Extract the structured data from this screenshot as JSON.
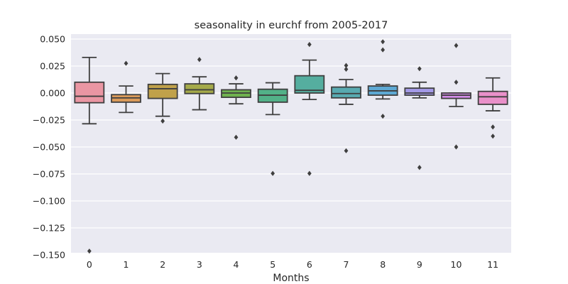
{
  "chart_data": {
    "type": "box",
    "title": "seasonality in eurchf from 2005-2017",
    "xlabel": "Months",
    "ylabel": "",
    "categories": [
      "0",
      "1",
      "2",
      "3",
      "4",
      "5",
      "6",
      "7",
      "8",
      "9",
      "10",
      "11"
    ],
    "ylim": [
      -0.157,
      0.057
    ],
    "yticks": [
      0.05,
      0.025,
      0.0,
      -0.025,
      -0.05,
      -0.075,
      -0.1,
      -0.125,
      -0.15
    ],
    "ytick_labels": [
      "0.050",
      "0.025",
      "0.000",
      "−0.025",
      "−0.050",
      "−0.075",
      "−0.100",
      "−0.125",
      "−0.150"
    ],
    "grid": true,
    "style": "seaborn-darkgrid",
    "boxes": [
      {
        "month": "0",
        "color": "#ea96a3",
        "whisker_low": -0.0285,
        "q1": -0.009,
        "median": -0.003,
        "q3": 0.01,
        "whisker_high": 0.033,
        "outliers": [
          -0.1465
        ]
      },
      {
        "month": "1",
        "color": "#da9a5a",
        "whisker_low": -0.018,
        "q1": -0.0085,
        "median": -0.0045,
        "q3": -0.0015,
        "whisker_high": 0.0065,
        "outliers": [
          0.0275
        ]
      },
      {
        "month": "2",
        "color": "#c0a14a",
        "whisker_low": -0.0215,
        "q1": -0.005,
        "median": 0.004,
        "q3": 0.008,
        "whisker_high": 0.018,
        "outliers": [
          -0.026
        ]
      },
      {
        "month": "3",
        "color": "#a5aa4a",
        "whisker_low": -0.0155,
        "q1": -0.0005,
        "median": 0.003,
        "q3": 0.0085,
        "whisker_high": 0.015,
        "outliers": [
          0.031
        ]
      },
      {
        "month": "4",
        "color": "#6fb24f",
        "whisker_low": -0.01,
        "q1": -0.004,
        "median": 0.0,
        "q3": 0.003,
        "whisker_high": 0.0085,
        "outliers": [
          0.014,
          -0.041
        ]
      },
      {
        "month": "5",
        "color": "#52b188",
        "whisker_low": -0.02,
        "q1": -0.0085,
        "median": -0.002,
        "q3": 0.0035,
        "whisker_high": 0.0095,
        "outliers": [
          -0.0745
        ]
      },
      {
        "month": "6",
        "color": "#55ae9f",
        "whisker_low": -0.006,
        "q1": 0.0,
        "median": 0.0025,
        "q3": 0.016,
        "whisker_high": 0.0305,
        "outliers": [
          0.045,
          -0.0745
        ]
      },
      {
        "month": "7",
        "color": "#58aab0",
        "whisker_low": -0.0105,
        "q1": -0.0045,
        "median": -0.0005,
        "q3": 0.0055,
        "whisker_high": 0.0125,
        "outliers": [
          0.0255,
          0.022,
          -0.0535
        ]
      },
      {
        "month": "8",
        "color": "#5ea9d4",
        "whisker_low": -0.0055,
        "q1": -0.002,
        "median": 0.002,
        "q3": 0.0065,
        "whisker_high": 0.008,
        "outliers": [
          0.0475,
          0.04,
          -0.0215
        ]
      },
      {
        "month": "9",
        "color": "#a49ae8",
        "whisker_low": -0.0045,
        "q1": -0.002,
        "median": 0.0,
        "q3": 0.0045,
        "whisker_high": 0.01,
        "outliers": [
          0.0225,
          -0.069
        ]
      },
      {
        "month": "10",
        "color": "#d28de8",
        "whisker_low": -0.0125,
        "q1": -0.005,
        "median": -0.002,
        "q3": 0.0,
        "whisker_high": 0.0,
        "outliers": [
          0.044,
          0.01,
          -0.05
        ]
      },
      {
        "month": "11",
        "color": "#e990c9",
        "whisker_low": -0.0165,
        "q1": -0.0105,
        "median": -0.0035,
        "q3": 0.0015,
        "whisker_high": 0.014,
        "outliers": [
          -0.0315,
          -0.04
        ]
      }
    ]
  }
}
